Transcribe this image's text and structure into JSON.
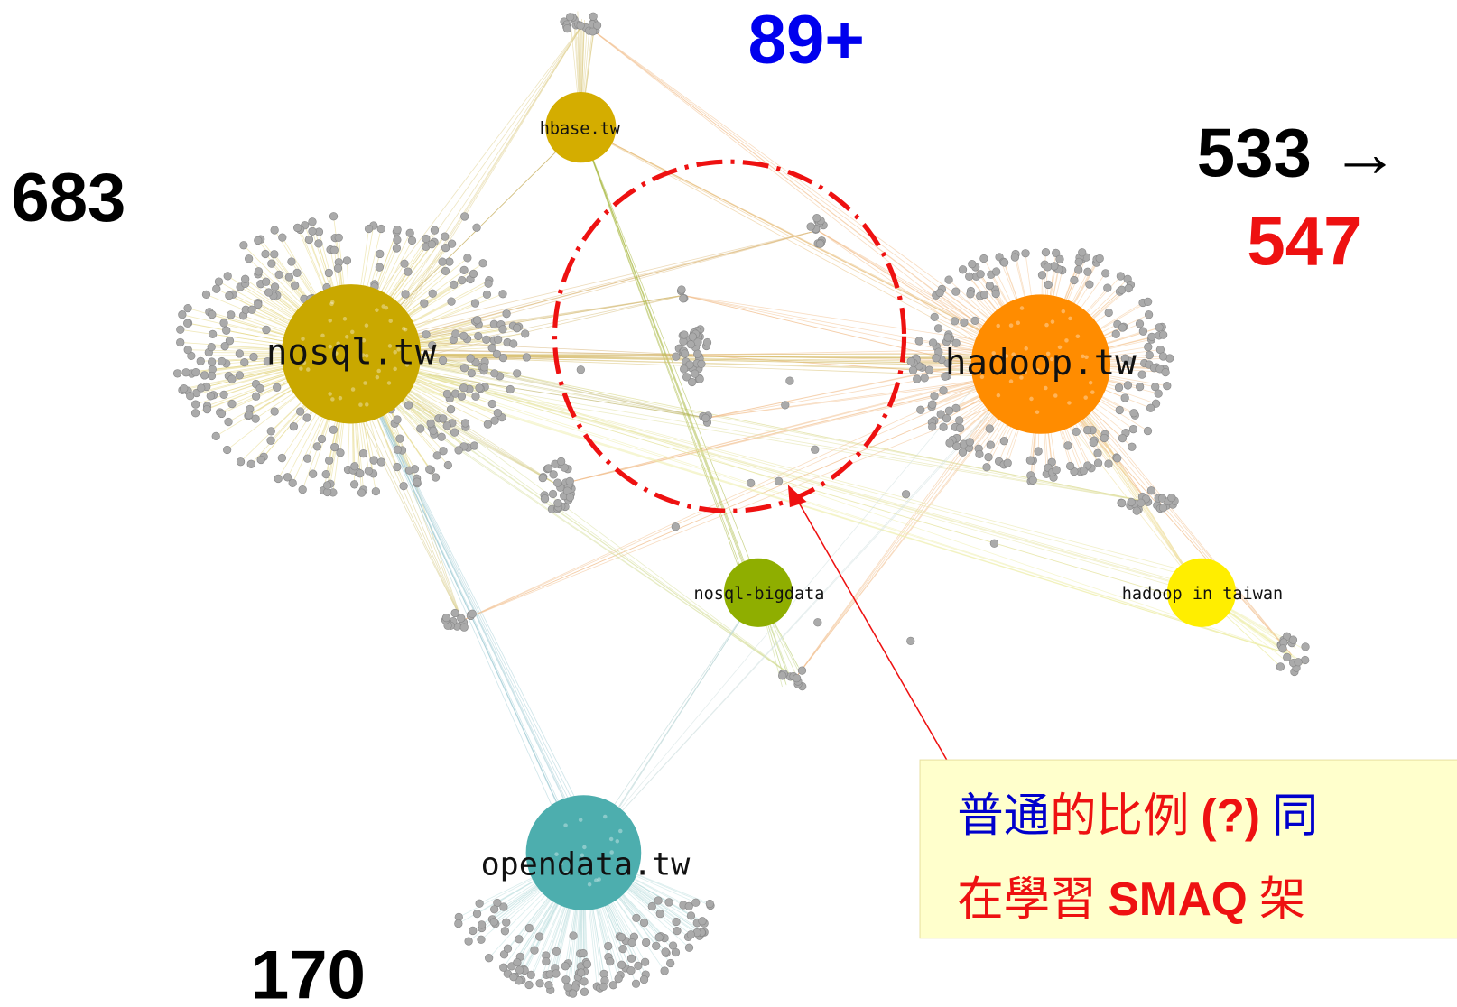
{
  "counts": {
    "nosql": "683",
    "hbase": "89+",
    "hadoop_before": "533 →",
    "hadoop_after": "547",
    "opendata": "170"
  },
  "nodes": [
    {
      "label": "hbase.tw"
    },
    {
      "label": "nosql.tw"
    },
    {
      "label": "hadoop.tw"
    },
    {
      "label": "nosql-bigdata"
    },
    {
      "label": "hadoop in taiwan"
    },
    {
      "label": "opendata.tw"
    }
  ],
  "annotation": {
    "line1": [
      "普通",
      "的比例",
      "(?)",
      "同"
    ],
    "line2": [
      "在學習",
      "SMAQ",
      "架"
    ]
  }
}
